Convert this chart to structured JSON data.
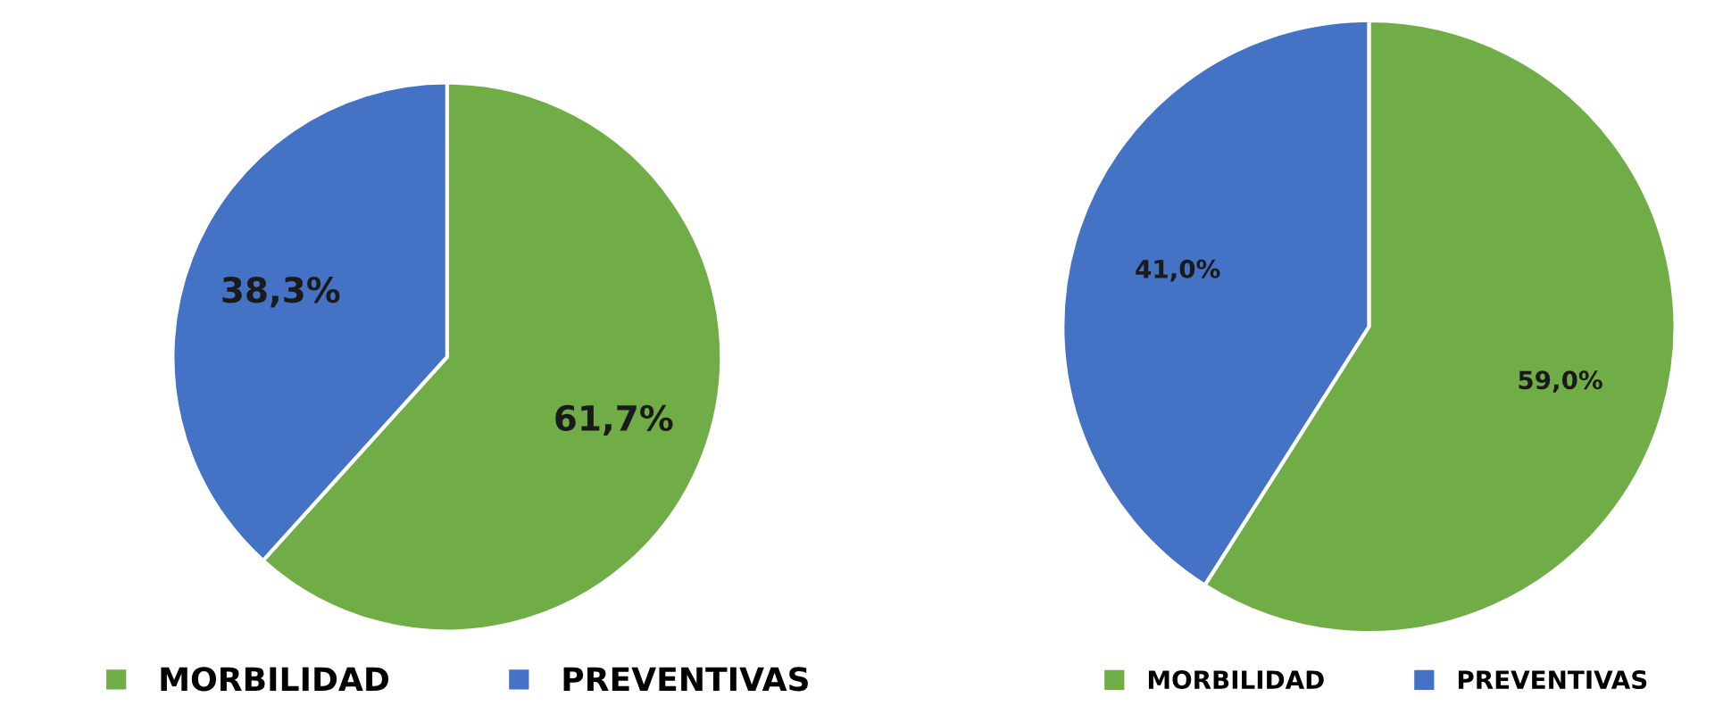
{
  "chart_data": [
    {
      "type": "pie",
      "categories": [
        "MORBILIDAD",
        "PREVENTIVAS"
      ],
      "values": [
        61.7,
        38.3
      ],
      "colors": [
        "#70ad47",
        "#4472c4"
      ],
      "value_labels": [
        "61,7%",
        "38,3%"
      ],
      "legend": "bottom"
    },
    {
      "type": "pie",
      "categories": [
        "MORBILIDAD",
        "PREVENTIVAS"
      ],
      "values": [
        59.0,
        41.0
      ],
      "colors": [
        "#70ad47",
        "#4472c4"
      ],
      "value_labels": [
        "59,0%",
        "41,0%"
      ],
      "legend": "bottom"
    }
  ]
}
